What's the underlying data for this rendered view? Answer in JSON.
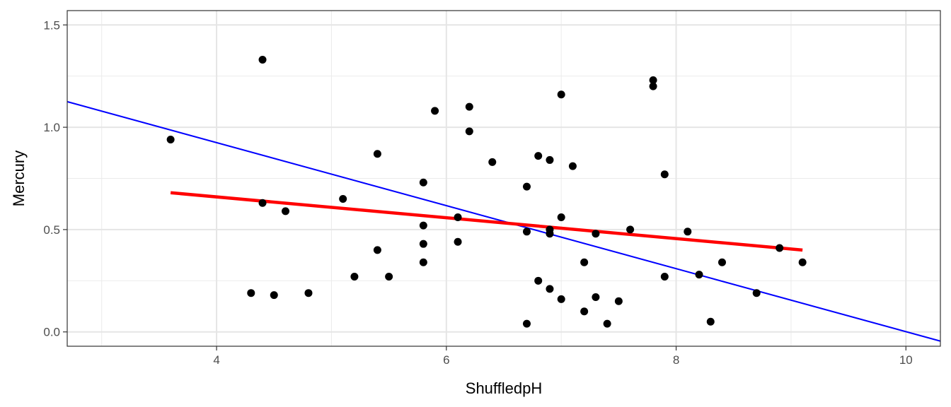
{
  "chart_data": {
    "type": "scatter",
    "title": "",
    "xlabel": "ShuffledpH",
    "ylabel": "Mercury",
    "xlim": [
      2.7,
      10.3
    ],
    "ylim": [
      -0.07,
      1.57
    ],
    "x_ticks": [
      4,
      6,
      8,
      10
    ],
    "x_tick_labels": [
      "4",
      "6",
      "8",
      "10"
    ],
    "x_minor_ticks": [
      3,
      5,
      7,
      9
    ],
    "y_ticks": [
      0.0,
      0.5,
      1.0,
      1.5
    ],
    "y_tick_labels": [
      "0.0",
      "0.5",
      "1.0",
      "1.5"
    ],
    "y_minor_ticks": [
      0.25,
      0.75,
      1.25
    ],
    "grid": true,
    "legend": "none",
    "series": [
      {
        "type": "scatter",
        "color": "#000000",
        "x": [
          3.6,
          4.4,
          4.4,
          4.3,
          4.5,
          4.6,
          4.8,
          5.1,
          5.2,
          5.4,
          5.4,
          5.5,
          5.8,
          5.8,
          5.8,
          5.8,
          5.9,
          6.1,
          6.1,
          6.2,
          6.2,
          6.4,
          6.7,
          6.7,
          6.7,
          6.8,
          6.8,
          6.9,
          6.9,
          6.9,
          6.9,
          7.0,
          7.0,
          7.0,
          7.1,
          7.2,
          7.2,
          7.3,
          7.3,
          7.4,
          7.5,
          7.6,
          7.8,
          7.8,
          7.9,
          7.9,
          8.1,
          8.2,
          8.3,
          8.4,
          8.7,
          8.9,
          9.1
        ],
        "y": [
          0.94,
          1.33,
          0.63,
          0.19,
          0.18,
          0.59,
          0.19,
          0.65,
          0.27,
          0.87,
          0.4,
          0.27,
          0.73,
          0.52,
          0.43,
          0.34,
          1.08,
          0.56,
          0.44,
          1.1,
          0.98,
          0.83,
          0.71,
          0.49,
          0.04,
          0.86,
          0.25,
          0.84,
          0.5,
          0.48,
          0.21,
          1.16,
          0.56,
          0.16,
          0.81,
          0.34,
          0.1,
          0.48,
          0.17,
          0.04,
          0.15,
          0.5,
          1.23,
          1.2,
          0.77,
          0.27,
          0.49,
          0.28,
          0.05,
          0.34,
          0.19,
          0.41,
          0.34
        ]
      },
      {
        "type": "line",
        "color": "#ff0000",
        "x": [
          3.6,
          9.1
        ],
        "y": [
          0.68,
          0.4
        ]
      },
      {
        "type": "line",
        "color": "#0000ff",
        "x": [
          2.7,
          10.3
        ],
        "y": [
          1.125,
          -0.045
        ]
      }
    ]
  }
}
